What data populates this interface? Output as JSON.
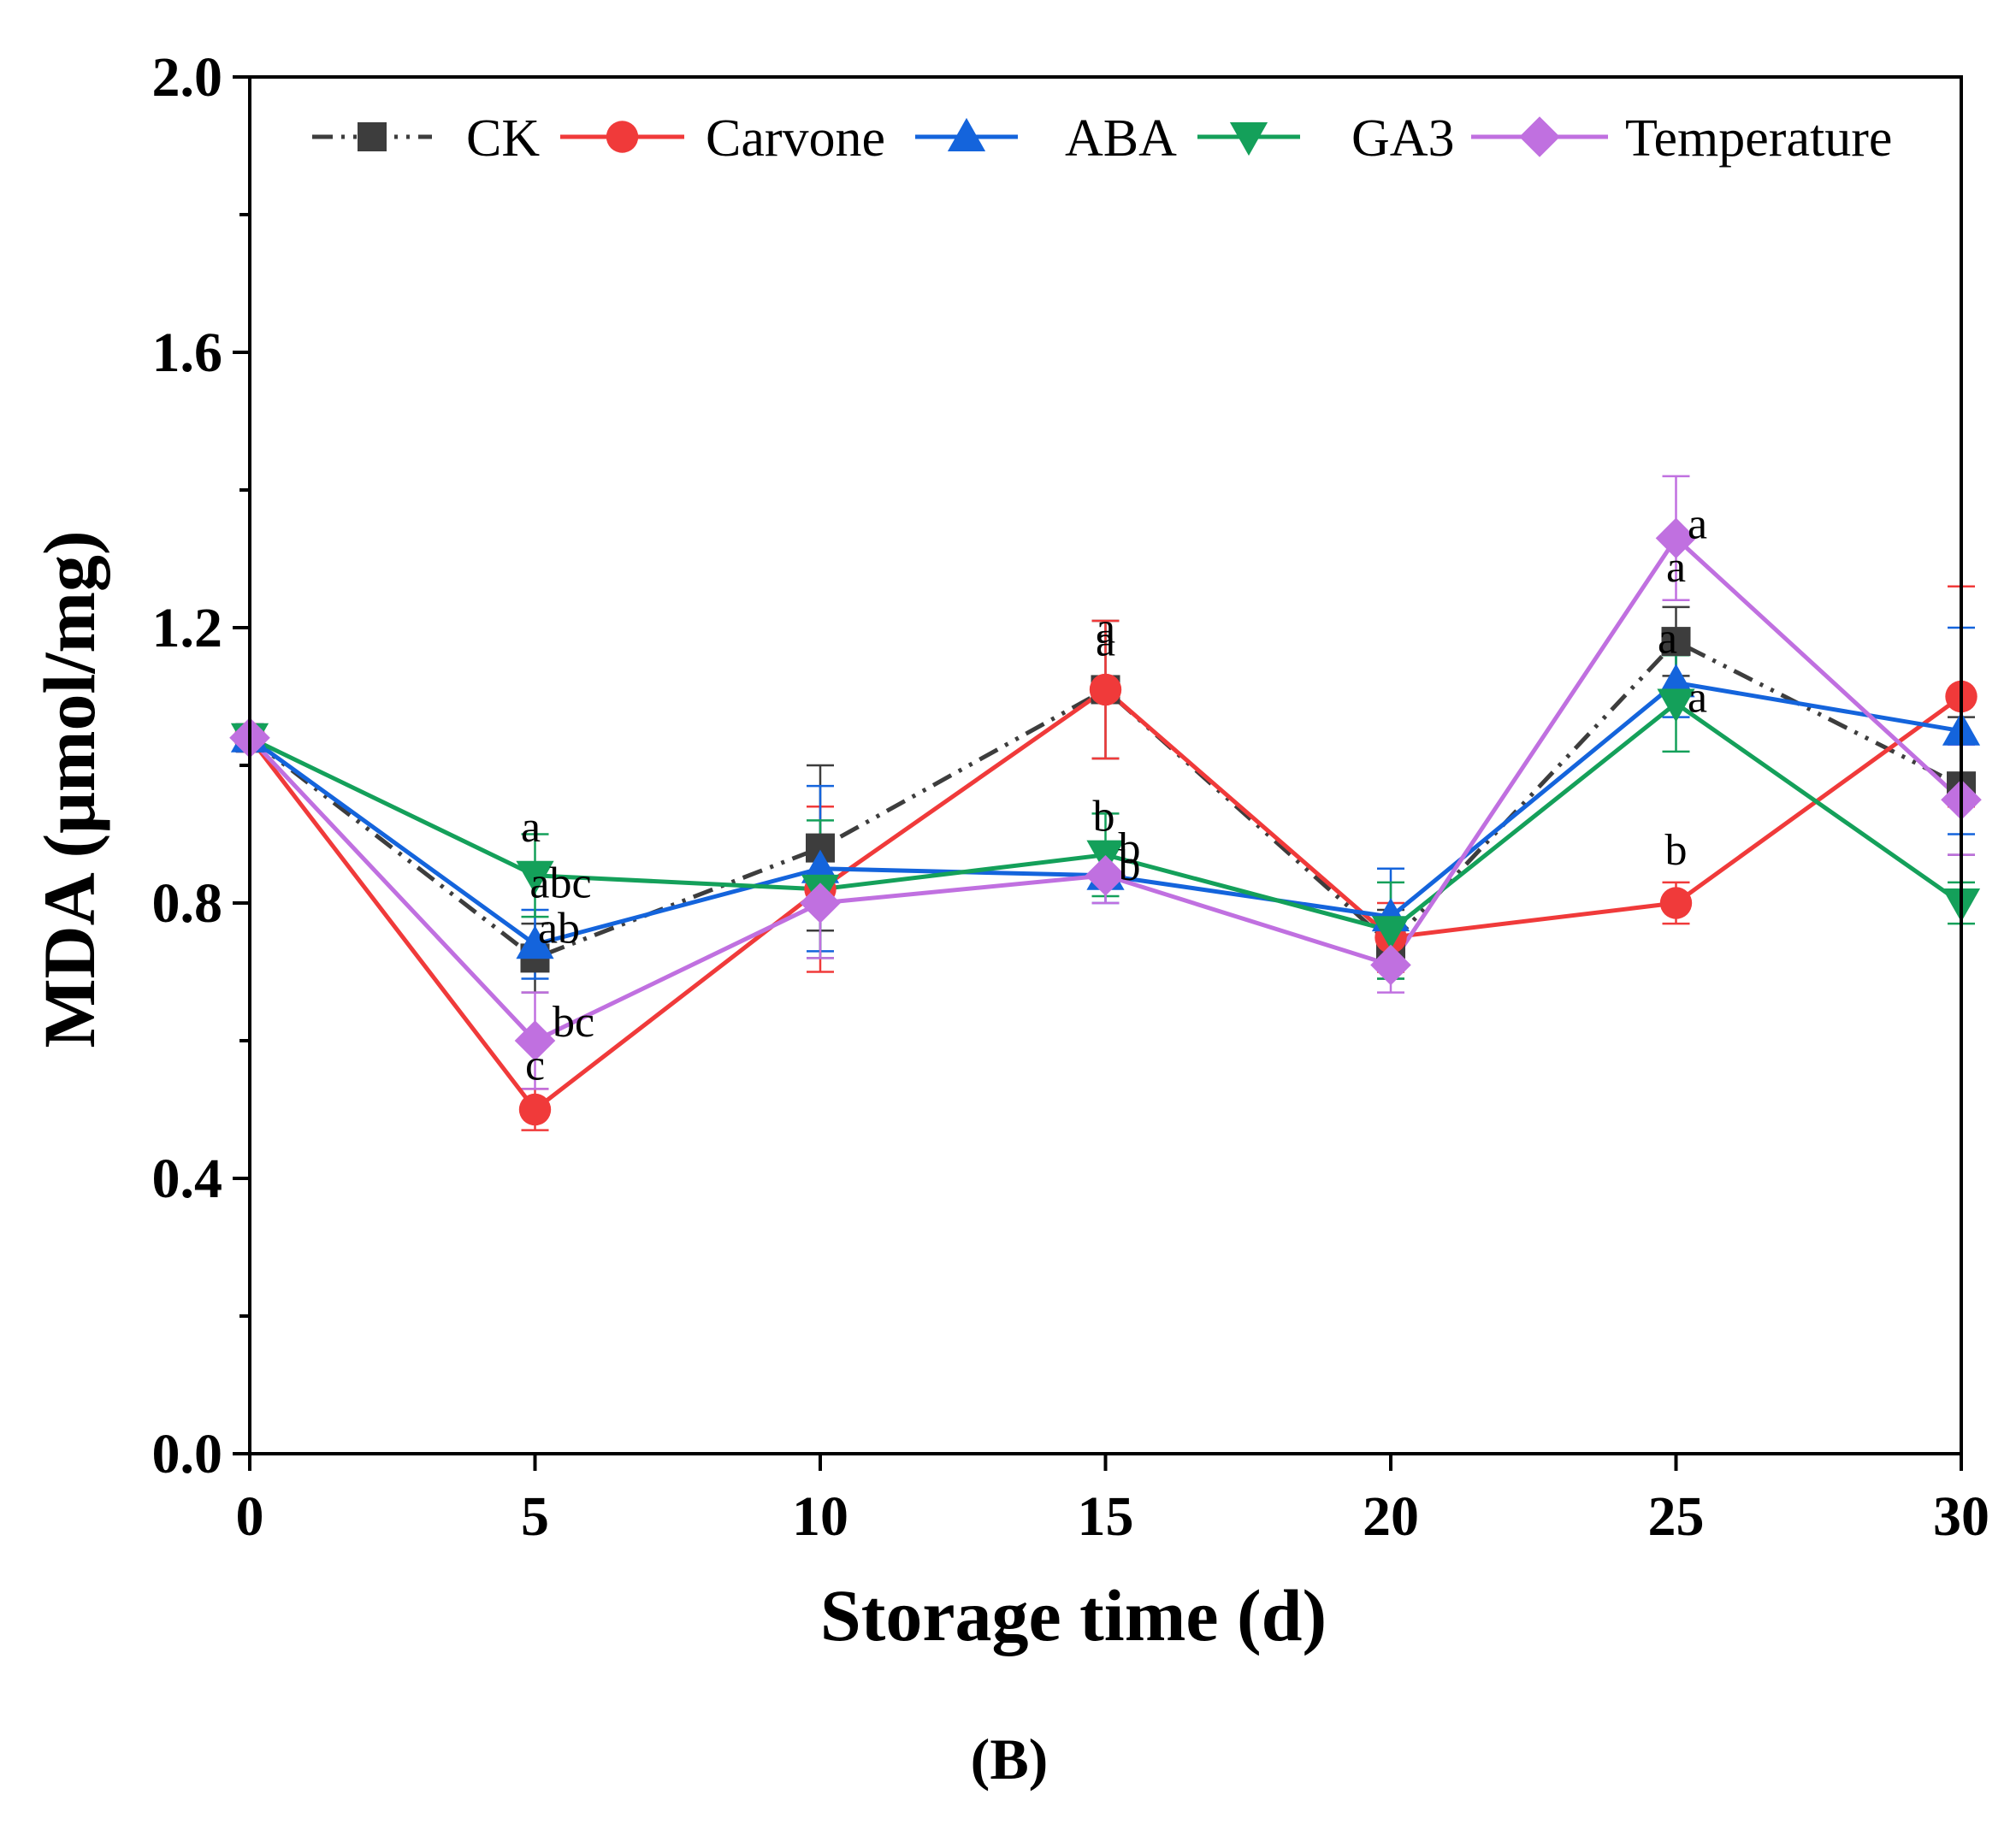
{
  "figure_label": "(B)",
  "chart_data": {
    "type": "line",
    "xlabel": "Storage time (d)",
    "ylabel": "MDA (μmol/mg)",
    "xlim": [
      0,
      30
    ],
    "ylim": [
      0,
      2.0
    ],
    "xticks": [
      0,
      5,
      10,
      15,
      20,
      25,
      30
    ],
    "yticks": [
      0.0,
      0.4,
      0.8,
      1.2,
      1.6,
      2.0
    ],
    "ytick_labels": [
      "0.0",
      "0.4",
      "0.8",
      "1.2",
      "1.6",
      "2.0"
    ],
    "grid": false,
    "legend_position": "top",
    "x": [
      0,
      5,
      10,
      15,
      20,
      25,
      30
    ],
    "series": [
      {
        "name": "CK",
        "color": "#3d3d3d",
        "marker": "square",
        "line_style": "dash-dot-dot",
        "values": [
          1.04,
          0.72,
          0.88,
          1.11,
          0.74,
          1.18,
          0.97
        ],
        "errors": [
          0.02,
          0.05,
          0.12,
          0.1,
          0.05,
          0.05,
          0.1
        ],
        "labels": [
          {
            "x": 5,
            "text": "ab"
          },
          {
            "x": 15,
            "text": "a"
          },
          {
            "x": 25,
            "text": "a"
          }
        ]
      },
      {
        "name": "Carvone",
        "color": "#f03a3a",
        "marker": "circle",
        "line_style": "solid",
        "values": [
          1.04,
          0.5,
          0.82,
          1.11,
          0.75,
          0.8,
          1.1
        ],
        "errors": [
          0.02,
          0.03,
          0.12,
          0.1,
          0.05,
          0.03,
          0.16
        ],
        "labels": [
          {
            "x": 5,
            "text": "c"
          },
          {
            "x": 15,
            "text": "a"
          },
          {
            "x": 25,
            "text": "b"
          }
        ]
      },
      {
        "name": "ABA",
        "color": "#1464dc",
        "marker": "triangle-up",
        "line_style": "solid",
        "values": [
          1.04,
          0.74,
          0.85,
          0.84,
          0.78,
          1.12,
          1.05
        ],
        "errors": [
          0.02,
          0.05,
          0.12,
          0.04,
          0.07,
          0.05,
          0.15
        ],
        "labels": [
          {
            "x": 5,
            "text": "abc"
          },
          {
            "x": 15,
            "text": "b"
          },
          {
            "x": 25,
            "text": "a"
          }
        ]
      },
      {
        "name": "GA3",
        "color": "#14a05a",
        "marker": "triangle-down",
        "line_style": "solid",
        "values": [
          1.04,
          0.84,
          0.82,
          0.87,
          0.76,
          1.09,
          0.8
        ],
        "errors": [
          0.02,
          0.06,
          0.1,
          0.06,
          0.07,
          0.07,
          0.03
        ],
        "labels": [
          {
            "x": 5,
            "text": "a"
          },
          {
            "x": 15,
            "text": "b"
          },
          {
            "x": 25,
            "text": "a"
          }
        ]
      },
      {
        "name": "Temperature",
        "color": "#c070e0",
        "marker": "diamond",
        "line_style": "solid",
        "values": [
          1.04,
          0.6,
          0.8,
          0.84,
          0.71,
          1.33,
          0.95
        ],
        "errors": [
          0.02,
          0.07,
          0.08,
          0.04,
          0.04,
          0.09,
          0.08
        ],
        "labels": [
          {
            "x": 5,
            "text": "bc"
          },
          {
            "x": 15,
            "text": "b"
          },
          {
            "x": 25,
            "text": "a"
          }
        ]
      }
    ]
  }
}
